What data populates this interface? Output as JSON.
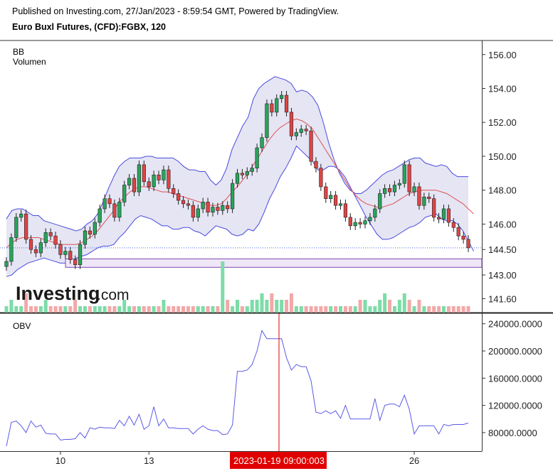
{
  "header": {
    "published": "Published on Investing.com, 27/Jan/2023 - 8:59:54 GMT, Powered by TradingView.",
    "instrument": "Euro Buxl Futures, (CFD):FGBX, 120"
  },
  "legend": {
    "indicator1": "BB",
    "indicator2": "Volumen",
    "obv": "OBV"
  },
  "watermark": {
    "brand": "Investing",
    "suffix": ".com"
  },
  "crosshair": {
    "label": "2023-01-19 09:00:003"
  },
  "colors": {
    "up": "#26a65b",
    "down": "#e04444",
    "bb_band": "#4a4ae0",
    "bb_fill": "#dcdcf0",
    "bb_mid": "#e05050",
    "obv_line": "#5a5ae8",
    "crosshair": "#e00000",
    "zone": "#7a4ab0",
    "last_price_line": "#4a6ae0"
  },
  "chart_data": [
    {
      "type": "line",
      "title": "Euro Buxl Futures, (CFD):FGBX, 120",
      "y_ticks": [
        "156.00",
        "154.00",
        "152.00",
        "150.00",
        "148.00",
        "146.00",
        "144.50",
        "143.00",
        "141.60"
      ],
      "y_tick_values": [
        156.0,
        154.0,
        152.0,
        150.0,
        148.0,
        146.0,
        144.5,
        143.0,
        141.6
      ],
      "ylim": [
        141.2,
        156.2
      ],
      "x_ticks": [
        "10",
        "13",
        "26"
      ],
      "x_tick_positions": [
        11,
        29,
        83
      ],
      "last_price": 144.6,
      "zone": [
        143.45,
        143.95
      ],
      "close": [
        143.8,
        145.2,
        146.4,
        146.6,
        145.1,
        144.5,
        144.3,
        144.9,
        145.5,
        145.3,
        144.8,
        144.2,
        144.4,
        143.9,
        143.6,
        144.8,
        145.6,
        145.4,
        146.1,
        146.9,
        147.5,
        147.2,
        146.4,
        147.3,
        148.3,
        148.7,
        147.9,
        149.5,
        148.5,
        148.2,
        148.9,
        148.6,
        149.2,
        148.1,
        147.8,
        147.4,
        147.2,
        147.1,
        146.4,
        146.9,
        147.3,
        146.7,
        147.0,
        146.8,
        147.1,
        146.9,
        148.4,
        149.0,
        148.9,
        149.1,
        149.3,
        150.5,
        151.1,
        153.1,
        152.6,
        153.4,
        153.6,
        152.6,
        151.2,
        151.4,
        151.6,
        151.5,
        149.7,
        149.3,
        148.2,
        147.5,
        147.7,
        147.1,
        147.2,
        146.4,
        145.9,
        146.1,
        146.0,
        146.2,
        146.4,
        146.9,
        147.8,
        148.1,
        147.9,
        148.3,
        148.4,
        149.5,
        147.9,
        148.2,
        147.1,
        147.6,
        147.5,
        146.4,
        146.3,
        146.9,
        146.1,
        145.8,
        145.3,
        145.1,
        144.6
      ],
      "series": [
        {
          "name": "BB upper",
          "values": [
            146.3,
            146.8,
            146.9,
            146.9,
            146.7,
            146.5,
            146.5,
            146.2,
            146.1,
            146.0,
            145.9,
            145.8,
            145.7,
            145.6,
            145.7,
            146.0,
            146.2,
            146.6,
            147.3,
            148.1,
            148.8,
            149.4,
            149.7,
            149.9,
            149.9,
            149.9,
            150.0,
            150.0,
            149.9,
            149.9,
            149.9,
            149.9,
            149.7,
            149.4,
            149.2,
            149.2,
            149.1,
            149.1,
            148.6,
            148.3,
            148.6,
            149.3,
            150.4,
            151.1,
            151.8,
            152.3,
            153.4,
            154.0,
            154.3,
            154.5,
            154.7,
            154.6,
            154.5,
            154.3,
            153.8,
            153.9,
            153.8,
            153.5,
            153.0,
            152.0,
            150.8,
            149.8,
            149.0,
            148.4,
            148.0,
            147.8,
            147.8,
            148.0,
            148.3,
            148.6,
            148.9,
            149.1,
            149.2,
            149.4,
            149.6,
            149.8,
            149.9,
            149.9,
            149.6,
            149.5,
            149.4,
            149.5,
            149.4,
            149.0,
            148.8,
            148.8,
            148.8
          ]
        },
        {
          "name": "BB basis",
          "values": [
            144.6,
            144.9,
            145.1,
            145.2,
            145.2,
            145.2,
            145.2,
            145.1,
            145.0,
            144.9,
            144.8,
            144.8,
            144.8,
            144.8,
            144.9,
            145.1,
            145.3,
            145.6,
            146.0,
            146.4,
            146.8,
            147.3,
            147.6,
            147.9,
            148.1,
            148.2,
            148.2,
            148.1,
            148.0,
            147.9,
            147.9,
            147.8,
            147.7,
            147.6,
            147.5,
            147.4,
            147.3,
            147.2,
            147.1,
            147.1,
            147.2,
            147.5,
            147.9,
            148.2,
            148.6,
            149.0,
            149.5,
            150.0,
            150.5,
            151.0,
            151.4,
            151.7,
            151.9,
            152.1,
            152.2,
            152.1,
            151.9,
            151.6,
            151.1,
            150.6,
            150.1,
            149.6,
            149.1,
            148.6,
            148.1,
            147.7,
            147.4,
            147.2,
            147.1,
            147.0,
            147.0,
            147.1,
            147.2,
            147.4,
            147.6,
            147.8,
            147.9,
            148.0,
            148.0,
            148.0,
            148.0,
            147.9,
            147.8,
            147.6,
            147.4,
            147.2,
            146.9,
            146.6
          ]
        },
        {
          "name": "BB lower",
          "values": [
            142.9,
            143.0,
            143.3,
            143.5,
            143.7,
            143.8,
            143.9,
            144.0,
            143.9,
            143.8,
            143.7,
            143.7,
            143.8,
            144.0,
            144.1,
            144.2,
            144.4,
            144.6,
            144.7,
            144.7,
            144.8,
            145.2,
            145.5,
            145.9,
            146.3,
            146.5,
            146.4,
            146.3,
            146.1,
            145.9,
            145.9,
            145.7,
            145.7,
            145.8,
            145.8,
            145.6,
            145.5,
            145.3,
            145.6,
            145.9,
            145.8,
            145.7,
            145.4,
            145.3,
            145.4,
            145.7,
            145.6,
            146.0,
            146.7,
            147.5,
            148.1,
            148.8,
            149.3,
            149.9,
            150.6,
            150.3,
            150.0,
            149.7,
            149.2,
            149.2,
            149.4,
            149.4,
            149.2,
            148.8,
            148.2,
            147.6,
            147.0,
            146.4,
            145.9,
            145.4,
            145.1,
            145.1,
            145.2,
            145.4,
            145.6,
            145.8,
            145.9,
            146.1,
            146.4,
            146.5,
            146.6,
            146.3,
            146.2,
            146.2,
            146.0,
            145.6,
            145.0,
            144.4
          ]
        },
        {
          "name": "Volume",
          "values": [
            1,
            2,
            1,
            1,
            3,
            1,
            1,
            1,
            2,
            1,
            1,
            1,
            1,
            1,
            2,
            1,
            1,
            1,
            1,
            1,
            1,
            1,
            1,
            1,
            2,
            1,
            1,
            1,
            1,
            1,
            1,
            1,
            2,
            1,
            1,
            1,
            1,
            1,
            1,
            1,
            1,
            1,
            1,
            1,
            8,
            2,
            1,
            2,
            1,
            1,
            2,
            2,
            3,
            2,
            3,
            2,
            2,
            2,
            3,
            1,
            1,
            1,
            1,
            1,
            1,
            1,
            1,
            1,
            1,
            1,
            1,
            1,
            2,
            2,
            1,
            1,
            2,
            3,
            2,
            1,
            2,
            3,
            2,
            1,
            2,
            1,
            1,
            1,
            1,
            1,
            1,
            1,
            1,
            1,
            1
          ]
        }
      ]
    },
    {
      "type": "line",
      "title": "OBV",
      "y_ticks": [
        "240000.0000",
        "200000.0000",
        "160000.0000",
        "120000.0000",
        "80000.0000"
      ],
      "y_tick_values": [
        240000,
        200000,
        160000,
        120000,
        80000
      ],
      "ylim": [
        58000,
        246000
      ],
      "series": [
        {
          "name": "OBV",
          "values": [
            60000,
            95000,
            97000,
            90000,
            80000,
            97000,
            88000,
            91000,
            79000,
            78000,
            78000,
            69000,
            70000,
            70000,
            71000,
            80000,
            72000,
            87000,
            85000,
            88000,
            87000,
            87000,
            86000,
            98000,
            90000,
            104000,
            91000,
            107000,
            85000,
            90000,
            118000,
            90000,
            100000,
            87000,
            87000,
            86000,
            86000,
            86000,
            78000,
            85000,
            90000,
            85000,
            83000,
            83000,
            77000,
            78000,
            91000,
            170000,
            170000,
            172000,
            180000,
            200000,
            230000,
            218000,
            218000,
            218000,
            218000,
            190000,
            172000,
            180000,
            177000,
            177000,
            156000,
            110000,
            108000,
            112000,
            108000,
            112000,
            101000,
            120000,
            100000,
            100000,
            100000,
            100000,
            100000,
            130000,
            98000,
            120000,
            122000,
            122000,
            118000,
            135000,
            114000,
            78000,
            90000,
            90000,
            90000,
            90000,
            78000,
            92000,
            90000,
            92000,
            92000,
            92000,
            94000
          ]
        }
      ]
    }
  ]
}
